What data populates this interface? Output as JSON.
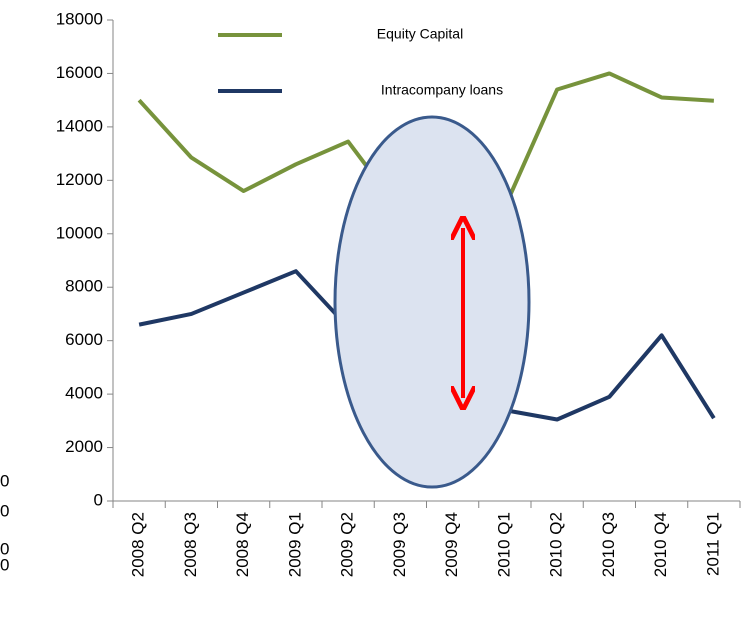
{
  "chart_data": {
    "type": "line",
    "categories": [
      "2008 Q2",
      "2008 Q3",
      "2008 Q4",
      "2009 Q1",
      "2009 Q2",
      "2009 Q3",
      "2009 Q4",
      "2010 Q1",
      "2010 Q2",
      "2010 Q3",
      "2010 Q4",
      "2011 Q1"
    ],
    "series": [
      {
        "name": "Equity Capital",
        "color": "#77933c",
        "values": [
          15000,
          12850,
          11600,
          12600,
          13450,
          10850,
          11200,
          11000,
          15400,
          16000,
          15100,
          14980
        ]
      },
      {
        "name": "Intracompany loans",
        "color": "#1f3864",
        "values": [
          6600,
          7000,
          7800,
          8600,
          6500,
          5600,
          1950,
          3400,
          3050,
          3900,
          6200,
          3100
        ]
      }
    ],
    "ylim": [
      0,
      18000
    ],
    "yticks": [
      0,
      2000,
      4000,
      6000,
      8000,
      10000,
      12000,
      14000,
      16000,
      18000
    ],
    "grid": false
  },
  "stray_labels": [
    "0",
    "0",
    "0",
    "0"
  ]
}
